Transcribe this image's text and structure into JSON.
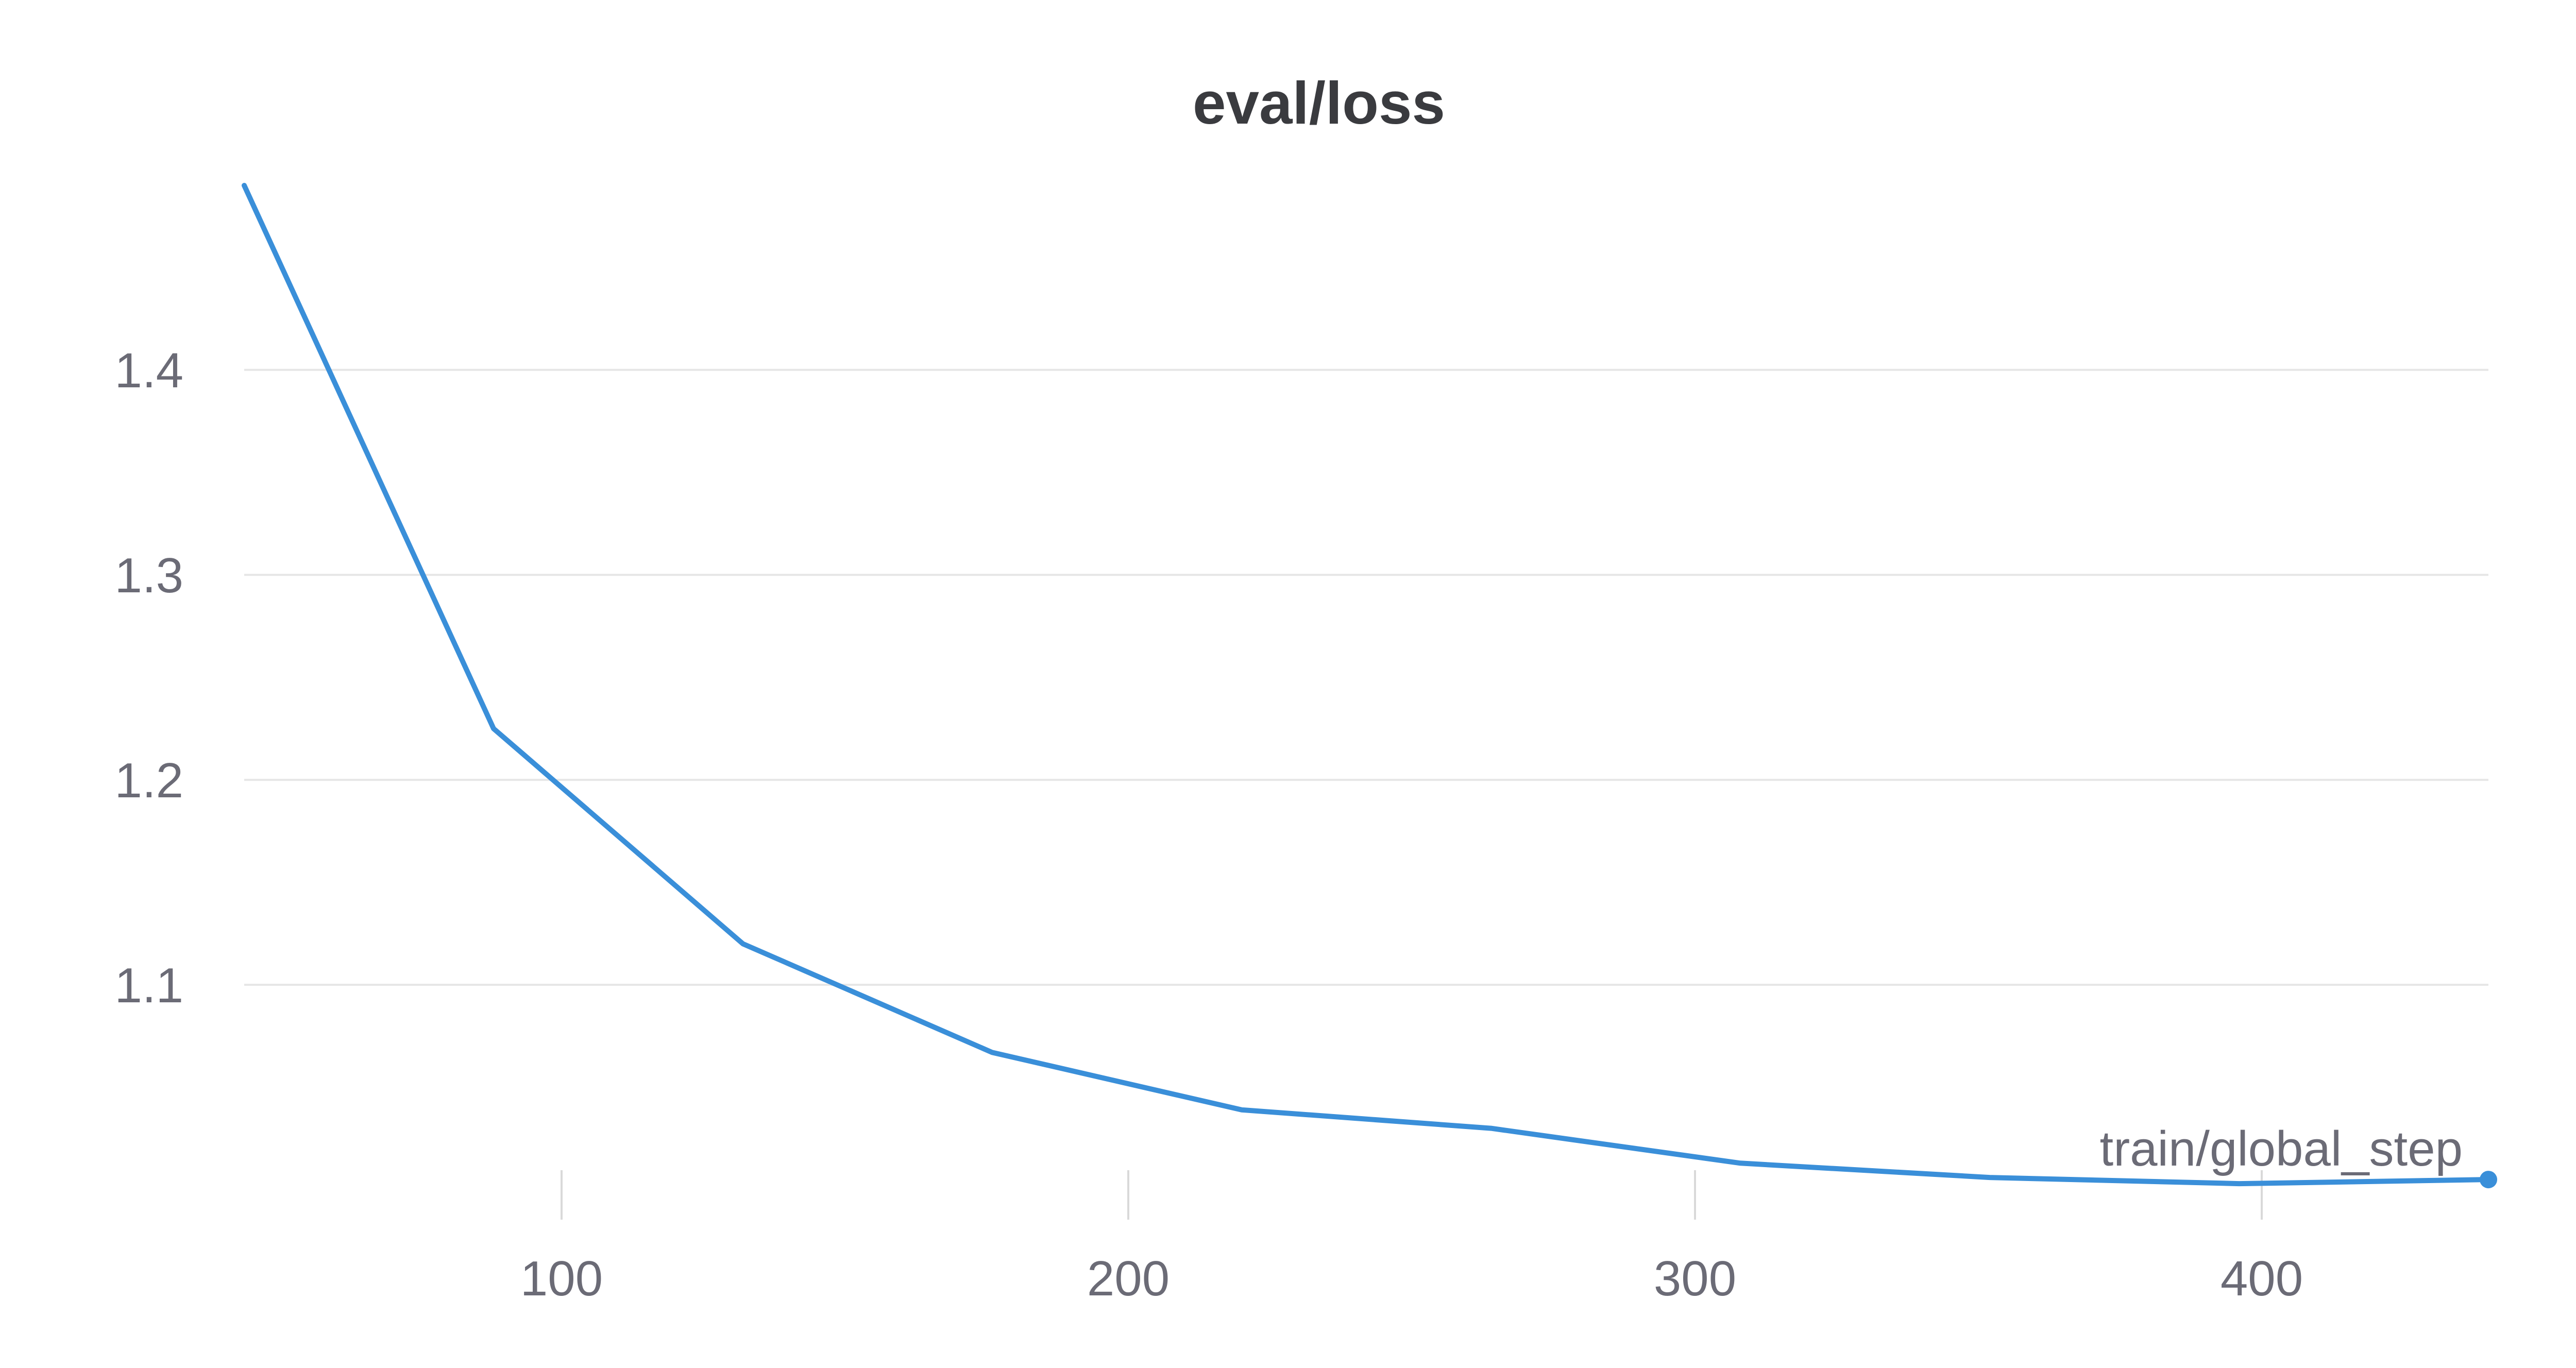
{
  "chart_data": {
    "type": "line",
    "title": "eval/loss",
    "xlabel": "train/global_step",
    "ylabel": "",
    "xlim": [
      44,
      440
    ],
    "ylim": [
      1.0,
      1.49
    ],
    "x_ticks": [
      100,
      200,
      300,
      400
    ],
    "y_ticks": [
      1.1,
      1.2,
      1.3,
      1.4
    ],
    "x_tick_labels": [
      "100",
      "200",
      "300",
      "400"
    ],
    "y_tick_labels": [
      "1.1",
      "1.2",
      "1.3",
      "1.4"
    ],
    "grid": {
      "horizontal": true,
      "vertical": false
    },
    "legend": "none",
    "end_marker": true,
    "colors": {
      "line": "#3a8fd9",
      "grid": "#e6e6e6",
      "tick": "#d9d9d9",
      "text": "#6b6b76",
      "title": "#3a3b3f"
    },
    "series": [
      {
        "x": [
          44,
          88,
          132,
          176,
          220,
          264,
          308,
          352,
          396,
          440
        ],
        "values": [
          1.49,
          1.225,
          1.12,
          1.067,
          1.039,
          1.03,
          1.013,
          1.006,
          1.003,
          1.005
        ]
      }
    ]
  }
}
